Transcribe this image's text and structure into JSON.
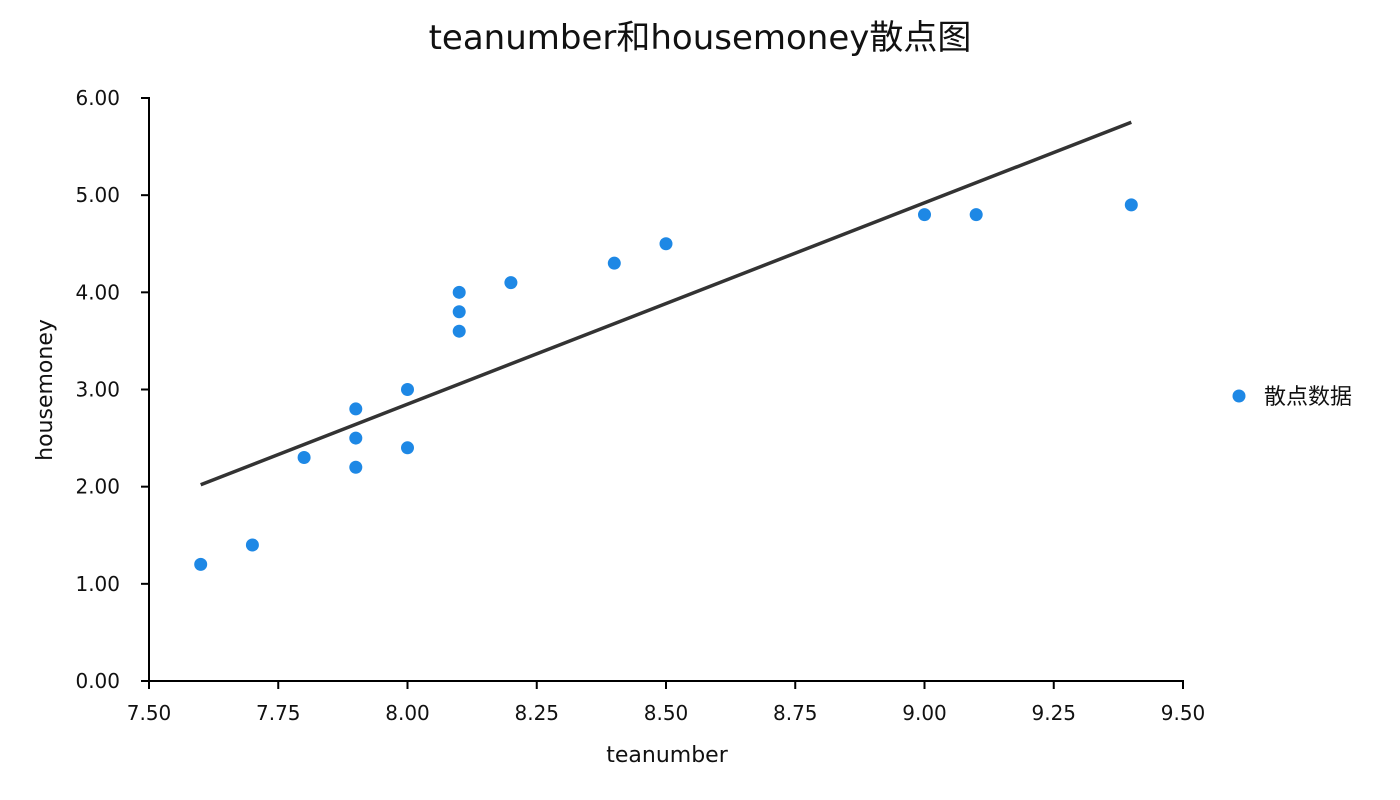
{
  "chart_data": {
    "type": "scatter",
    "title": "teanumber和housemoney散点图",
    "xlabel": "teanumber",
    "ylabel": "housemoney",
    "xlim": [
      7.5,
      9.5
    ],
    "ylim": [
      0,
      6
    ],
    "xticks": [
      "7.50",
      "7.75",
      "8.00",
      "8.25",
      "8.50",
      "8.75",
      "9.00",
      "9.25",
      "9.50"
    ],
    "yticks": [
      "0.00",
      "1.00",
      "2.00",
      "3.00",
      "4.00",
      "5.00",
      "6.00"
    ],
    "xtick_values": [
      7.5,
      7.75,
      8.0,
      8.25,
      8.5,
      8.75,
      9.0,
      9.25,
      9.5
    ],
    "ytick_values": [
      0,
      1,
      2,
      3,
      4,
      5,
      6
    ],
    "grid": false,
    "legend_position": "right",
    "series": [
      {
        "name": "散点数据",
        "color": "#1e88e5",
        "points": [
          {
            "x": 7.6,
            "y": 1.2
          },
          {
            "x": 7.7,
            "y": 1.4
          },
          {
            "x": 7.8,
            "y": 2.3
          },
          {
            "x": 7.9,
            "y": 2.2
          },
          {
            "x": 7.9,
            "y": 2.5
          },
          {
            "x": 7.9,
            "y": 2.8
          },
          {
            "x": 8.0,
            "y": 2.4
          },
          {
            "x": 8.0,
            "y": 3.0
          },
          {
            "x": 8.1,
            "y": 3.6
          },
          {
            "x": 8.1,
            "y": 3.8
          },
          {
            "x": 8.1,
            "y": 4.0
          },
          {
            "x": 8.2,
            "y": 4.1
          },
          {
            "x": 8.4,
            "y": 4.3
          },
          {
            "x": 8.5,
            "y": 4.5
          },
          {
            "x": 9.0,
            "y": 4.8
          },
          {
            "x": 9.1,
            "y": 4.8
          },
          {
            "x": 9.4,
            "y": 4.9
          }
        ]
      }
    ],
    "trend_line": {
      "color": "#333333",
      "points": [
        {
          "x": 7.6,
          "y": 2.02
        },
        {
          "x": 9.4,
          "y": 5.75
        }
      ]
    }
  }
}
